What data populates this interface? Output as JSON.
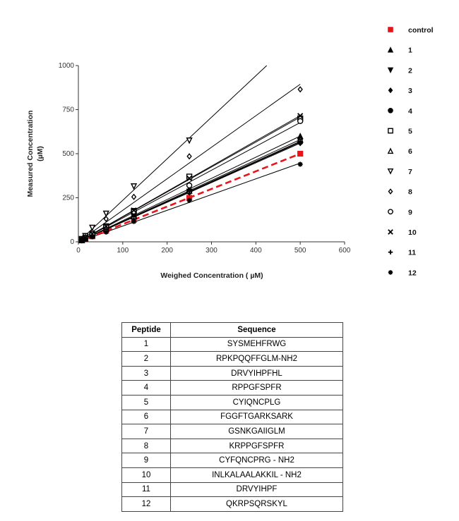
{
  "chart_data": {
    "type": "scatter",
    "xlabel": "Weighed Concentration ( µM)",
    "ylabel": "Measured  Concentration (µM)",
    "xlim": [
      0,
      600
    ],
    "ylim": [
      0,
      1000
    ],
    "xticks": [
      "0",
      "100",
      "200",
      "300",
      "400",
      "500",
      "600"
    ],
    "yticks": [
      "0",
      "250",
      "500",
      "750",
      "1000"
    ],
    "grid": false,
    "legend_position": "right",
    "x": [
      7.8,
      15.6,
      31.3,
      62.5,
      125,
      250,
      500
    ],
    "series": [
      {
        "name": "control",
        "marker": "square",
        "color": "#e8141b",
        "fit": "dashed",
        "values": [
          8,
          16,
          31,
          63,
          125,
          250,
          500
        ]
      },
      {
        "name": "1",
        "marker": "triangle-up",
        "color": "#000000",
        "values": [
          9,
          19,
          38,
          75,
          150,
          300,
          600
        ]
      },
      {
        "name": "2",
        "marker": "triangle-down",
        "color": "#000000",
        "values": [
          9,
          18,
          36,
          71,
          143,
          285,
          570
        ]
      },
      {
        "name": "3",
        "marker": "diamond",
        "color": "#000000",
        "values": [
          9,
          17,
          35,
          70,
          140,
          280,
          560
        ]
      },
      {
        "name": "4",
        "marker": "circle",
        "color": "#000000",
        "values": [
          9,
          18,
          35,
          71,
          141,
          283,
          565
        ]
      },
      {
        "name": "5",
        "marker": "open-square",
        "color": "#000000",
        "values": [
          11,
          22,
          44,
          88,
          175,
          370,
          700
        ]
      },
      {
        "name": "6",
        "marker": "open-triangle-up",
        "color": "#000000",
        "values": [
          9,
          18,
          36,
          73,
          145,
          290,
          580
        ]
      },
      {
        "name": "7",
        "marker": "open-triangle-down",
        "color": "#000000",
        "values": [
          16,
          33,
          80,
          160,
          315,
          575,
          null
        ]
      },
      {
        "name": "8",
        "marker": "open-diamond",
        "color": "#000000",
        "values": [
          14,
          27,
          55,
          130,
          255,
          485,
          865
        ]
      },
      {
        "name": "9",
        "marker": "open-circle",
        "color": "#000000",
        "values": [
          11,
          22,
          43,
          86,
          172,
          320,
          685
        ]
      },
      {
        "name": "10",
        "marker": "x",
        "color": "#000000",
        "values": [
          11,
          22,
          45,
          89,
          179,
          360,
          715
        ]
      },
      {
        "name": "11",
        "marker": "plus",
        "color": "#000000",
        "values": [
          9,
          18,
          36,
          71,
          143,
          285,
          570
        ]
      },
      {
        "name": "12",
        "marker": "asterisk",
        "color": "#000000",
        "values": [
          7,
          14,
          28,
          55,
          115,
          235,
          440
        ]
      }
    ]
  },
  "table": {
    "headers": [
      "Peptide",
      "Sequence"
    ],
    "rows": [
      [
        "1",
        "SYSMEHFRWG"
      ],
      [
        "2",
        "RPKPQQFFGLM-NH2"
      ],
      [
        "3",
        "DRVYIHPFHL"
      ],
      [
        "4",
        "RPPGFSPFR"
      ],
      [
        "5",
        "CYIQNCPLG"
      ],
      [
        "6",
        "FGGFTGARKSARK"
      ],
      [
        "7",
        "GSNKGAIIGLM"
      ],
      [
        "8",
        "KRPPGFSPFR"
      ],
      [
        "9",
        "CYFQNCPRG - NH2"
      ],
      [
        "10",
        "INLKALAALAKKIL - NH2"
      ],
      [
        "11",
        "DRVYIHPF"
      ],
      [
        "12",
        "QKRPSQRSKYL"
      ]
    ]
  }
}
